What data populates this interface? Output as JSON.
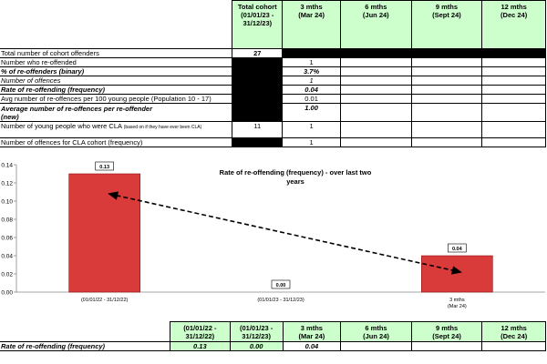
{
  "top_table": {
    "headers": [
      "Total cohort\n(01/01/23 -\n31/12/23)",
      "3 mths\n(Mar 24)",
      "6 mths\n(Jun 24)",
      "9 mths\n(Sept 24)",
      "12 mths\n(Dec 24)"
    ],
    "rows": [
      {
        "label": "Total number of cohort offenders",
        "total": "27",
        "m3": ""
      },
      {
        "label": "Number who re-offended",
        "total": "",
        "m3": "1"
      },
      {
        "label": "% of re-offenders (binary)",
        "total": "",
        "m3": "3.7%"
      },
      {
        "label": "Number of offences",
        "total": "",
        "m3": "1"
      },
      {
        "label": "Rate of re-offending (frequency)",
        "total": "",
        "m3": "0.04"
      },
      {
        "label": "Avg number of re-offences per 100 young people (Population 10 - 17)",
        "total": "",
        "m3": "0.01"
      },
      {
        "label": "Average number of re-offences per re-offender\n(new)",
        "total": "",
        "m3": "1.00"
      },
      {
        "label": "Number of young people who were CLA",
        "label_note": "(based on if they have ever been CLA)",
        "total": "11",
        "m3": "1"
      },
      {
        "label": "Number of offences for CLA cohort (frequency)",
        "total": "",
        "m3": "1"
      }
    ]
  },
  "chart_data": {
    "type": "bar",
    "title": "Rate of re-offending (frequency) - over last two years",
    "categories": [
      "(01/01/22 - 31/12/22)",
      "(01/01/23 - 31/12/23)",
      "3 mths\n(Mar 24)"
    ],
    "values": [
      0.13,
      0.0,
      0.04
    ],
    "data_labels": [
      "0.13",
      "0.00",
      "0.04"
    ],
    "ylim": [
      0,
      0.14
    ],
    "yticks": [
      "0.00",
      "0.02",
      "0.04",
      "0.06",
      "0.08",
      "0.10",
      "0.12",
      "0.14"
    ],
    "bar_color": "#d93a3a",
    "trendline": "dashed arrow from first to last bar",
    "grid": false
  },
  "bottom_table": {
    "headers": [
      "(01/01/22 -\n31/12/22)",
      "(01/01/23 -\n31/12/23)",
      "3 mths\n(Mar 24)",
      "6 mths\n(Jun 24)",
      "9 mths\n(Sept 24)",
      "12 mths\n(Dec 24)"
    ],
    "row_label": "Rate of re-offending (frequency)",
    "values": [
      "0.13",
      "0.00",
      "0.04",
      "",
      "",
      ""
    ]
  }
}
